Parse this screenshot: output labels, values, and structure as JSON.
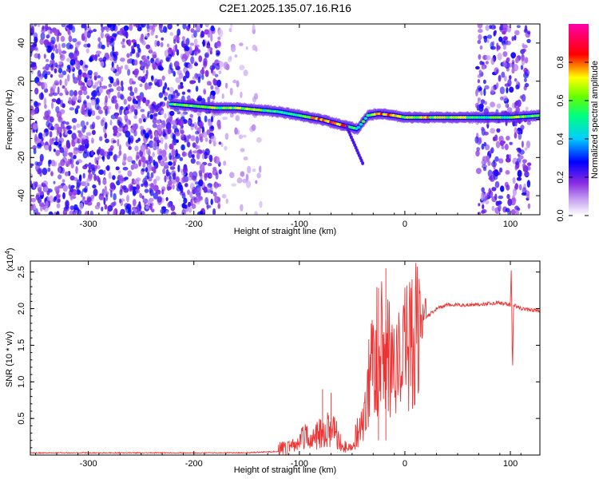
{
  "title": "C2E1.2025.135.07.16.R16",
  "chart_data": [
    {
      "type": "heatmap",
      "xlabel": "Height of straight line (km)",
      "ylabel": "Frequency (Hz)",
      "xlim": [
        -355,
        128
      ],
      "ylim": [
        -50,
        50
      ],
      "xticks": [
        "-300",
        "-200",
        "-100",
        "0",
        "100"
      ],
      "xtick_values": [
        -300,
        -200,
        -100,
        0,
        100
      ],
      "yticks": [
        "-40",
        "-20",
        "0",
        "20",
        "40"
      ],
      "ytick_values": [
        -40,
        -20,
        0,
        20,
        40
      ],
      "colorbar": {
        "label": "Normalized spectral amplitude",
        "range": [
          0,
          1
        ],
        "ticks": [
          "0.0",
          "0.2",
          "0.4",
          "0.6",
          "0.8"
        ],
        "tick_values": [
          0,
          0.2,
          0.4,
          0.6,
          0.8
        ],
        "colors": [
          "#ffffff",
          "#8a2be2",
          "#0000ff",
          "#00ffff",
          "#00ff00",
          "#ffff00",
          "#ff0000",
          "#ff00ff"
        ]
      },
      "regions": [
        {
          "name": "broadband noise",
          "x": [
            -355,
            -175
          ],
          "freq": [
            -50,
            50
          ],
          "amplitude": 0.25
        },
        {
          "name": "sparse noise",
          "x": [
            -175,
            -135
          ],
          "freq": [
            -50,
            50
          ],
          "amplitude": 0.08
        }
      ],
      "ridge": {
        "x": [
          -222,
          -200,
          -180,
          -160,
          -140,
          -120,
          -100,
          -80,
          -60,
          -45,
          -35,
          -25,
          -10,
          0,
          20,
          40,
          60,
          70,
          100,
          128
        ],
        "freq": [
          8,
          7,
          6,
          6,
          5,
          4,
          2,
          0,
          -3,
          -5,
          2,
          3,
          2,
          1,
          1,
          1,
          1,
          1,
          1,
          2
        ],
        "amplitude": [
          0.6,
          0.6,
          0.65,
          0.65,
          0.6,
          0.5,
          0.55,
          0.8,
          0.85,
          0.5,
          0.55,
          0.75,
          0.8,
          0.6,
          0.7,
          0.65,
          0.65,
          0.55,
          0.6,
          0.6
        ]
      },
      "tail": {
        "x": [
          -55,
          -40
        ],
        "freq": [
          -4,
          -23
        ]
      },
      "noise_band_right": {
        "x": [
          68,
          118
        ],
        "freq": [
          -50,
          50
        ],
        "amplitude": 0.25
      }
    },
    {
      "type": "line",
      "xlabel": "Height of straight line (km)",
      "ylabel": "SNR (10 * v/v)",
      "yscale_label": "(x10",
      "yscale_exponent": "4",
      "xlim": [
        -355,
        128
      ],
      "ylim": [
        0,
        2.65
      ],
      "xticks": [
        "-300",
        "-200",
        "-100",
        "0",
        "100"
      ],
      "xtick_values": [
        -300,
        -200,
        -100,
        0,
        100
      ],
      "yticks": [
        "0.5",
        "1.0",
        "1.5",
        "2.0",
        "2.5"
      ],
      "ytick_values": [
        0.5,
        1.0,
        1.5,
        2.0,
        2.5
      ],
      "color": "#ee3333",
      "series": [
        {
          "x": [
            -355,
            -300,
            -250,
            -200,
            -150,
            -120,
            -110,
            -100,
            -95,
            -90,
            -85,
            -80,
            -75,
            -70,
            -65,
            -60,
            -55,
            -50,
            -45,
            -40,
            -35,
            -30,
            -25,
            -20,
            -15,
            -10,
            -5,
            0,
            5,
            10,
            15,
            20,
            30,
            40,
            60,
            80,
            90,
            100,
            101,
            102,
            103,
            110,
            120,
            128
          ],
          "y": [
            0.03,
            0.03,
            0.03,
            0.03,
            0.03,
            0.05,
            0.12,
            0.2,
            0.3,
            0.22,
            0.25,
            0.4,
            0.3,
            0.5,
            0.3,
            0.2,
            0.1,
            0.1,
            0.35,
            0.5,
            0.9,
            1.3,
            1.5,
            1.5,
            1.3,
            1.1,
            1.25,
            1.45,
            1.6,
            1.7,
            1.8,
            1.88,
            2.0,
            2.05,
            2.05,
            2.07,
            2.08,
            2.05,
            2.6,
            1.05,
            2.05,
            2.0,
            1.98,
            1.97
          ]
        }
      ],
      "spikes": [
        {
          "x": -18,
          "y": 2.55
        },
        {
          "x": -25,
          "y": 2.28
        },
        {
          "x": -78,
          "y": 0.9
        },
        {
          "x": -70,
          "y": 0.85
        }
      ]
    }
  ]
}
